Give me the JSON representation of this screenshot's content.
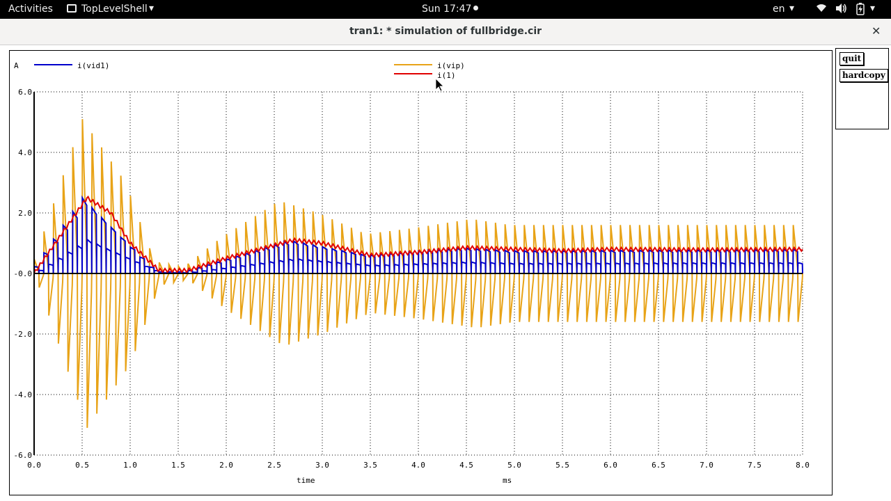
{
  "topbar": {
    "activities": "Activities",
    "app_name": "TopLevelShell",
    "clock": "Sun 17:47",
    "language": "en"
  },
  "window": {
    "title": "tran1: * simulation of fullbridge.cir",
    "close_symbol": "✕"
  },
  "buttons": {
    "quit": "quit",
    "hardcopy": "hardcopy"
  },
  "chart_data": {
    "type": "line",
    "y_unit": "A",
    "xlabel": "time",
    "x_unit": "ms",
    "xlim": [
      0.0,
      8.0
    ],
    "ylim": [
      -6.0,
      6.0
    ],
    "x_ticks": [
      "0.0",
      "0.5",
      "1.0",
      "1.5",
      "2.0",
      "2.5",
      "3.0",
      "3.5",
      "4.0",
      "4.5",
      "5.0",
      "5.5",
      "6.0",
      "6.5",
      "7.0",
      "7.5",
      "8.0"
    ],
    "y_ticks": [
      "6.0",
      "4.0",
      "2.0",
      "-0.0",
      "-2.0",
      "-4.0",
      "-6.0"
    ],
    "grid": true,
    "switching_period_ms": 0.1,
    "series": [
      {
        "name": "i(vid1)",
        "color": "#0000cc",
        "description": "switched current, pulses between 0 and envelope",
        "envelope": {
          "x": [
            0,
            0.55,
            1.3,
            1.6,
            2.7,
            3.5,
            4.5,
            5.0,
            8.0
          ],
          "y": [
            0,
            2.5,
            0.05,
            0.05,
            1.1,
            0.6,
            0.85,
            0.75,
            0.8
          ]
        }
      },
      {
        "name": "i(vip)",
        "color": "#e8a317",
        "description": "alternating current, swings between +envelope and -envelope",
        "envelope": {
          "x": [
            0,
            0.55,
            1.0,
            1.3,
            1.6,
            2.0,
            2.6,
            3.0,
            3.5,
            4.0,
            4.6,
            5.0,
            8.0
          ],
          "y": [
            0,
            5.1,
            3.0,
            0.4,
            0.2,
            1.2,
            2.4,
            2.0,
            1.3,
            1.5,
            1.8,
            1.6,
            1.6
          ]
        }
      },
      {
        "name": "i(1)",
        "color": "#e00000",
        "description": "filtered current",
        "x": [
          0,
          0.55,
          0.8,
          1.0,
          1.3,
          1.6,
          2.0,
          2.7,
          3.0,
          3.5,
          4.0,
          4.5,
          5.0,
          5.5,
          6.0,
          7.0,
          8.0
        ],
        "y": [
          0,
          2.5,
          2.0,
          1.0,
          0.1,
          0.1,
          0.5,
          1.1,
          1.0,
          0.6,
          0.7,
          0.85,
          0.8,
          0.75,
          0.8,
          0.78,
          0.8
        ]
      }
    ]
  }
}
